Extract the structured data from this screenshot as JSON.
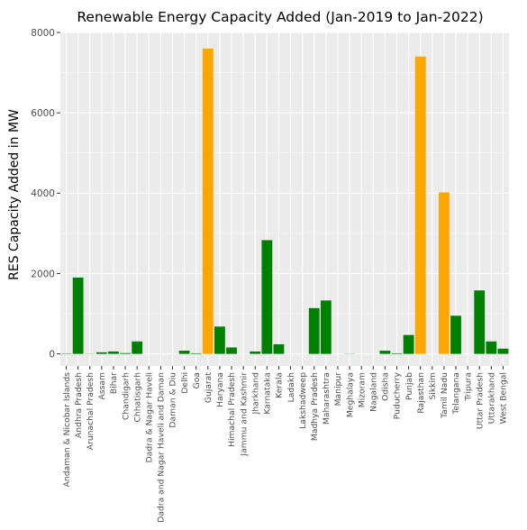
{
  "chart_data": {
    "type": "bar",
    "title": "Renewable Energy Capacity Added (Jan-2019 to Jan-2022)",
    "xlabel": "",
    "ylabel": "RES Capacity Added in MW",
    "ylim": [
      -300,
      8000
    ],
    "yticks": [
      0,
      2000,
      4000,
      6000,
      8000
    ],
    "grid": true,
    "legend": "none",
    "colors": {
      "default": "#008000",
      "highlight": "#FFA500",
      "panel": "#EBEBEB",
      "grid": "#FFFFFF"
    },
    "categories": [
      "Andaman & Nicobar Islands",
      "Andhra Pradesh",
      "Arunachal Pradesh",
      "Assam",
      "Bihar",
      "Chandigarh",
      "Chhatisgarh",
      "Dadra & Nagar Haveli",
      "Dadra and Nagar Haveli and Daman",
      "Daman & Diu",
      "Delhi",
      "Goa",
      "Gujarat",
      "Haryana",
      "Himachal Pradesh",
      "Jammu and Kashmir",
      "Jharkhand",
      "Karnataka",
      "Kerala",
      "Ladakh",
      "Lakshadweep",
      "Madhya Pradesh",
      "Maharashtra",
      "Manipur",
      "Meghalaya",
      "Mizoram",
      "Nagaland",
      "Odisha",
      "Puducherry",
      "Punjab",
      "Rajasthan",
      "Sikkim",
      "Tamil Nadu",
      "Telangana",
      "Tripura",
      "Uttar Pradesh",
      "Uttarakhand",
      "West Bengal"
    ],
    "values": [
      10,
      1900,
      5,
      40,
      60,
      20,
      310,
      0,
      0,
      0,
      80,
      15,
      7600,
      680,
      160,
      0,
      60,
      2830,
      240,
      0,
      0,
      1140,
      1330,
      0,
      5,
      0,
      0,
      80,
      15,
      470,
      7400,
      0,
      4020,
      950,
      0,
      1580,
      310,
      130
    ],
    "highlighted": [
      "Gujarat",
      "Rajasthan",
      "Tamil Nadu"
    ]
  }
}
